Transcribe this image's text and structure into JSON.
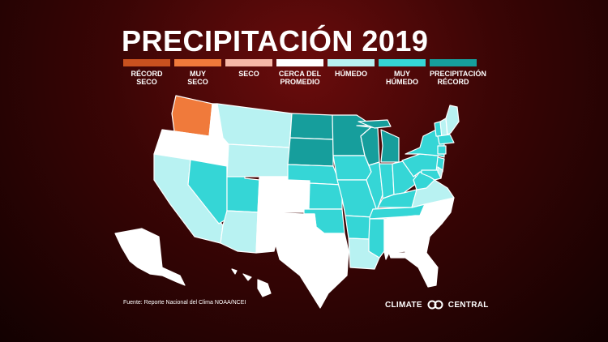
{
  "title": "PRECIPITACIÓN 2019",
  "legend": [
    {
      "label": "RÉCORD\nSECO",
      "color": "#c9511f"
    },
    {
      "label": "MUY\nSECO",
      "color": "#f07a3b"
    },
    {
      "label": "SECO",
      "color": "#f6b8a8"
    },
    {
      "label": "CERCA DEL\nPROMEDIO",
      "color": "#ffffff"
    },
    {
      "label": "HÚMEDO",
      "color": "#b8f2f2"
    },
    {
      "label": "MUY\nHÚMEDO",
      "color": "#35d6d6"
    },
    {
      "label": "PRECIPITACIÓN\nRÉCORD",
      "color": "#169e9c"
    }
  ],
  "states": [
    {
      "id": "WA",
      "cat": 1
    },
    {
      "id": "OR",
      "cat": 3
    },
    {
      "id": "CA",
      "cat": 4
    },
    {
      "id": "ID",
      "cat": 3
    },
    {
      "id": "NV",
      "cat": 5
    },
    {
      "id": "UT",
      "cat": 5
    },
    {
      "id": "AZ",
      "cat": 4
    },
    {
      "id": "MT",
      "cat": 4
    },
    {
      "id": "WY",
      "cat": 4
    },
    {
      "id": "CO",
      "cat": 3
    },
    {
      "id": "NM",
      "cat": 3
    },
    {
      "id": "ND",
      "cat": 6
    },
    {
      "id": "SD",
      "cat": 6
    },
    {
      "id": "NE",
      "cat": 5
    },
    {
      "id": "KS",
      "cat": 5
    },
    {
      "id": "OK",
      "cat": 5
    },
    {
      "id": "TX",
      "cat": 3
    },
    {
      "id": "MN",
      "cat": 6
    },
    {
      "id": "IA",
      "cat": 5
    },
    {
      "id": "MO",
      "cat": 5
    },
    {
      "id": "AR",
      "cat": 5
    },
    {
      "id": "LA",
      "cat": 4
    },
    {
      "id": "WI",
      "cat": 6
    },
    {
      "id": "IL",
      "cat": 5
    },
    {
      "id": "MI",
      "cat": 6
    },
    {
      "id": "IN",
      "cat": 5
    },
    {
      "id": "OH",
      "cat": 5
    },
    {
      "id": "KY",
      "cat": 5
    },
    {
      "id": "TN",
      "cat": 5
    },
    {
      "id": "MS",
      "cat": 5
    },
    {
      "id": "AL",
      "cat": 3
    },
    {
      "id": "GA",
      "cat": 3
    },
    {
      "id": "FL",
      "cat": 3
    },
    {
      "id": "SC",
      "cat": 3
    },
    {
      "id": "NC",
      "cat": 3
    },
    {
      "id": "VA",
      "cat": 4
    },
    {
      "id": "WV",
      "cat": 5
    },
    {
      "id": "PA",
      "cat": 5
    },
    {
      "id": "NY",
      "cat": 5
    },
    {
      "id": "VT",
      "cat": 5
    },
    {
      "id": "NH",
      "cat": 4
    },
    {
      "id": "ME",
      "cat": 4
    },
    {
      "id": "MA",
      "cat": 5
    },
    {
      "id": "CT",
      "cat": 5
    },
    {
      "id": "NJ",
      "cat": 5
    },
    {
      "id": "MD",
      "cat": 5
    },
    {
      "id": "DE",
      "cat": 4
    },
    {
      "id": "AK",
      "cat": 3
    },
    {
      "id": "HI",
      "cat": 3
    }
  ],
  "source": "Fuente: Reporte Nacional del Clima NOAA/NCEI",
  "brand": {
    "left": "CLIMATE",
    "right": "CENTRAL"
  }
}
